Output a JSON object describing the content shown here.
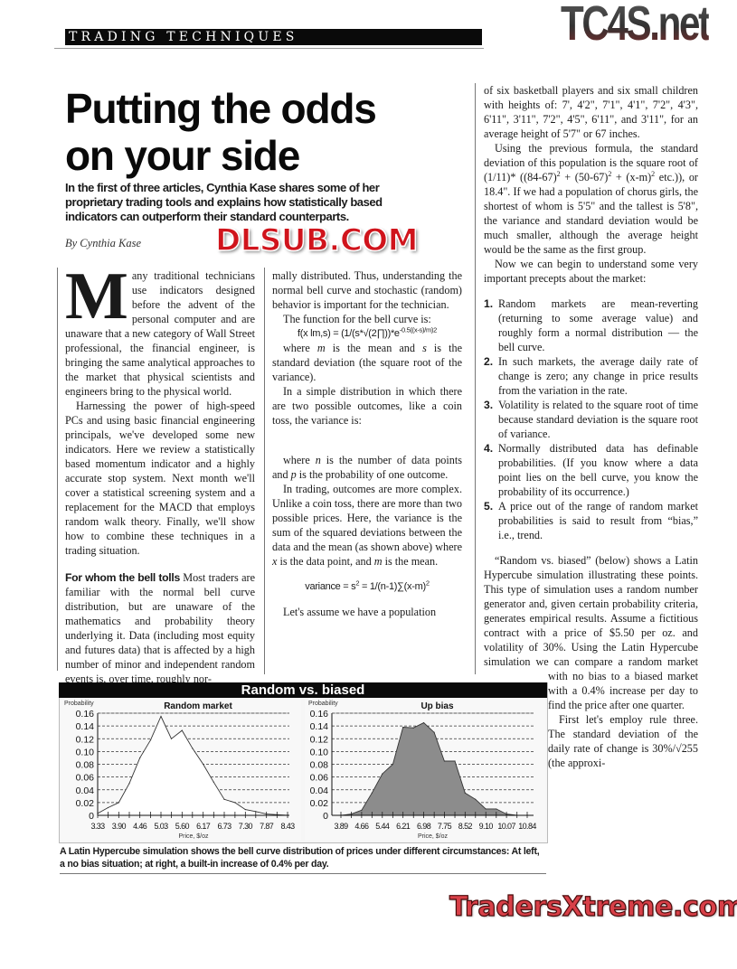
{
  "header": {
    "section": "TRADING TECHNIQUES",
    "logo_text": "TC4S.net"
  },
  "article": {
    "title_line1": "Putting the odds",
    "title_line2": "on your side",
    "deck": "In the first of three articles, Cynthia Kase shares some of her proprietary trading tools and explains how statistically based indicators can outperform their standard counterparts.",
    "byline": "By Cynthia Kase",
    "dropcap": "M",
    "left": {
      "p1": "any traditional technicians use indicators designed before the advent of the personal computer and are unaware that a new category of Wall Street professional, the financial engineer, is bringing the same analytical approaches to the market that physical scientists and engineers bring to the physical world.",
      "p2": "Harnessing the power of high-speed PCs and using basic financial engineering principals, we've developed some new indicators. Here we review a statistically based momentum indicator and a highly accurate stop system. Next month we'll cover a statistical screening system and a replacement for the MACD that employs random walk theory. Finally, we'll show how to combine these techniques in a trading situation.",
      "subhead": "For whom the bell tolls",
      "p3": "Most traders are familiar with the normal bell curve distribution, but are unaware of the mathematics and probability theory underlying it. Data (including most equity and futures data) that is affected by a high number of minor and independent random events is, over time, roughly nor-"
    },
    "middle": {
      "p1": "mally distributed. Thus, understanding the normal bell curve and stochastic (random) behavior is important for the technician.",
      "p2": "The function for the bell curve is:",
      "formula1_main": "f(x lm,s) = (1/(s*√(2∏))*e",
      "formula1_exp": "-0.5((x-s)/m)2",
      "p3_a": "where ",
      "p3_m": "m",
      "p3_b": " is the mean and ",
      "p3_s": "s",
      "p3_c": " is the standard deviation (the square root of the variance).",
      "p4": "In a simple distribution in which there are two possible outcomes, like a coin toss, the variance is:",
      "p5_a": "where ",
      "p5_n": "n",
      "p5_b": " is the number of data points and ",
      "p5_p": "p",
      "p5_c": " is the probability of one outcome.",
      "p6_a": "In trading, outcomes are more complex. Unlike a coin toss, there are more than two possible prices. Here, the variance is the sum of the squared deviations between the data and the mean (as shown above) where ",
      "p6_x": "x",
      "p6_b": " is the data point, and ",
      "p6_m": "m",
      "p6_c": " is the mean.",
      "formula2_a": "variance = s",
      "formula2_sup1": "2",
      "formula2_b": " = 1/(n-1)∑(x-m)",
      "formula2_sup2": "2",
      "p7": "Let's assume we have a population"
    },
    "right": {
      "p1": "of six basketball players and six small children with heights of: 7', 4'2\", 7'1\", 4'1\", 7'2\", 4'3\", 6'11\", 3'11\", 7'2\", 4'5\", 6'11\", and 3'11\", for an average height of 5'7\" or 67 inches.",
      "p2_a": "Using the previous formula, the standard deviation of this population is the square root of (1/11)* ((84-67)",
      "p2_b": " + (50-67)",
      "p2_c": " + (x-m)",
      "p2_d": " etc.)), or 18.4\". If we had a population of chorus girls, the shortest of whom is 5'5\" and the tallest is 5'8\", the variance and standard deviation would be much smaller, although the average height would be the same as the first group.",
      "sup2": "2",
      "p3": "Now we can begin to understand some very important precepts about the market:",
      "precepts": [
        {
          "num": "1.",
          "text": "Random markets are mean-reverting (returning to some average value) and roughly form a normal distribution — the bell curve."
        },
        {
          "num": "2.",
          "text": "In such markets, the average daily rate of change is zero; any change in price results from the variation in the rate."
        },
        {
          "num": "3.",
          "text": "Volatility is related to the square root of time because standard deviation is the square root of variance."
        },
        {
          "num": "4.",
          "text": "Normally distributed data has definable probabilities. (If you know where a data point lies on the bell curve, you know the probability of its occurrence.)"
        },
        {
          "num": "5.",
          "text": "A price out of the range of random market probabilities is said to result from “bias,” i.e., trend."
        }
      ],
      "p4_wide": "“Random vs. biased” (below) shows a Latin Hypercube simulation illustrating these points. This type of simulation uses a random number generator and, given certain probability criteria, generates empirical",
      "p4_narrow": "results. Assume a fictitious contract with a price of $5.50 per oz. and volatility of 30%. Using the Latin Hypercube simulation we can compare a random market with no bias to a biased market with a 0.4% increase per day to find the price after one quarter.",
      "p5": "First let's employ rule three. The standard deviation of the daily rate of change is 30%/√255 (the approxi-"
    }
  },
  "figure": {
    "title": "Random vs. biased",
    "caption": "A Latin Hypercube simulation shows the bell curve distribution of prices under different circumstances: At left, a no bias situation; at right, a built-in increase of 0.4% per day."
  },
  "chart_data": [
    {
      "type": "line",
      "title": "Random market",
      "ylabel": "Probability",
      "xlabel": "Price, $/oz",
      "ylim": [
        0,
        0.16
      ],
      "yticks": [
        "0",
        "0.02",
        "0.04",
        "0.06",
        "0.08",
        "0.10",
        "0.12",
        "0.14",
        "0.16"
      ],
      "xtick_labels": [
        "3.33",
        "3.90",
        "4.46",
        "5.03",
        "5.60",
        "6.17",
        "6.73",
        "7.30",
        "7.87",
        "8.43"
      ],
      "grid": "dashed horizontal",
      "fill": "#ffffff",
      "x": [
        3.33,
        3.61,
        3.9,
        4.18,
        4.46,
        4.75,
        5.03,
        5.31,
        5.6,
        5.88,
        6.17,
        6.45,
        6.73,
        7.02,
        7.3,
        7.58,
        7.87,
        8.15,
        8.43
      ],
      "y": [
        0.003,
        0.012,
        0.02,
        0.05,
        0.09,
        0.118,
        0.155,
        0.12,
        0.133,
        0.105,
        0.08,
        0.052,
        0.025,
        0.02,
        0.009,
        0.006,
        0.002,
        0.001,
        0.0
      ]
    },
    {
      "type": "area",
      "title": "Up bias",
      "ylabel": "Probability",
      "xlabel": "Price, $/oz",
      "ylim": [
        0,
        0.16
      ],
      "yticks": [
        "0",
        "0.02",
        "0.04",
        "0.06",
        "0.08",
        "0.10",
        "0.12",
        "0.14",
        "0.16"
      ],
      "xtick_labels": [
        "3.89",
        "4.66",
        "5.44",
        "6.21",
        "6.98",
        "7.75",
        "8.52",
        "9.10",
        "10.07",
        "10.84"
      ],
      "grid": "dashed horizontal",
      "fill": "#8c8c8c",
      "x": [
        3.89,
        4.28,
        4.66,
        5.05,
        5.44,
        5.83,
        6.21,
        6.6,
        6.98,
        7.37,
        7.75,
        8.14,
        8.52,
        8.81,
        9.1,
        9.59,
        10.07,
        10.46,
        10.84
      ],
      "y": [
        0.0,
        0.002,
        0.008,
        0.035,
        0.065,
        0.08,
        0.138,
        0.137,
        0.145,
        0.13,
        0.085,
        0.085,
        0.035,
        0.025,
        0.01,
        0.01,
        0.002,
        0.0,
        0.0
      ]
    }
  ],
  "watermarks": {
    "center": "DLSUB.COM",
    "bottom": "TradersXtreme.com"
  },
  "colors": {
    "watermark_red": "#d0141c",
    "header_black": "#0a0a0a"
  }
}
